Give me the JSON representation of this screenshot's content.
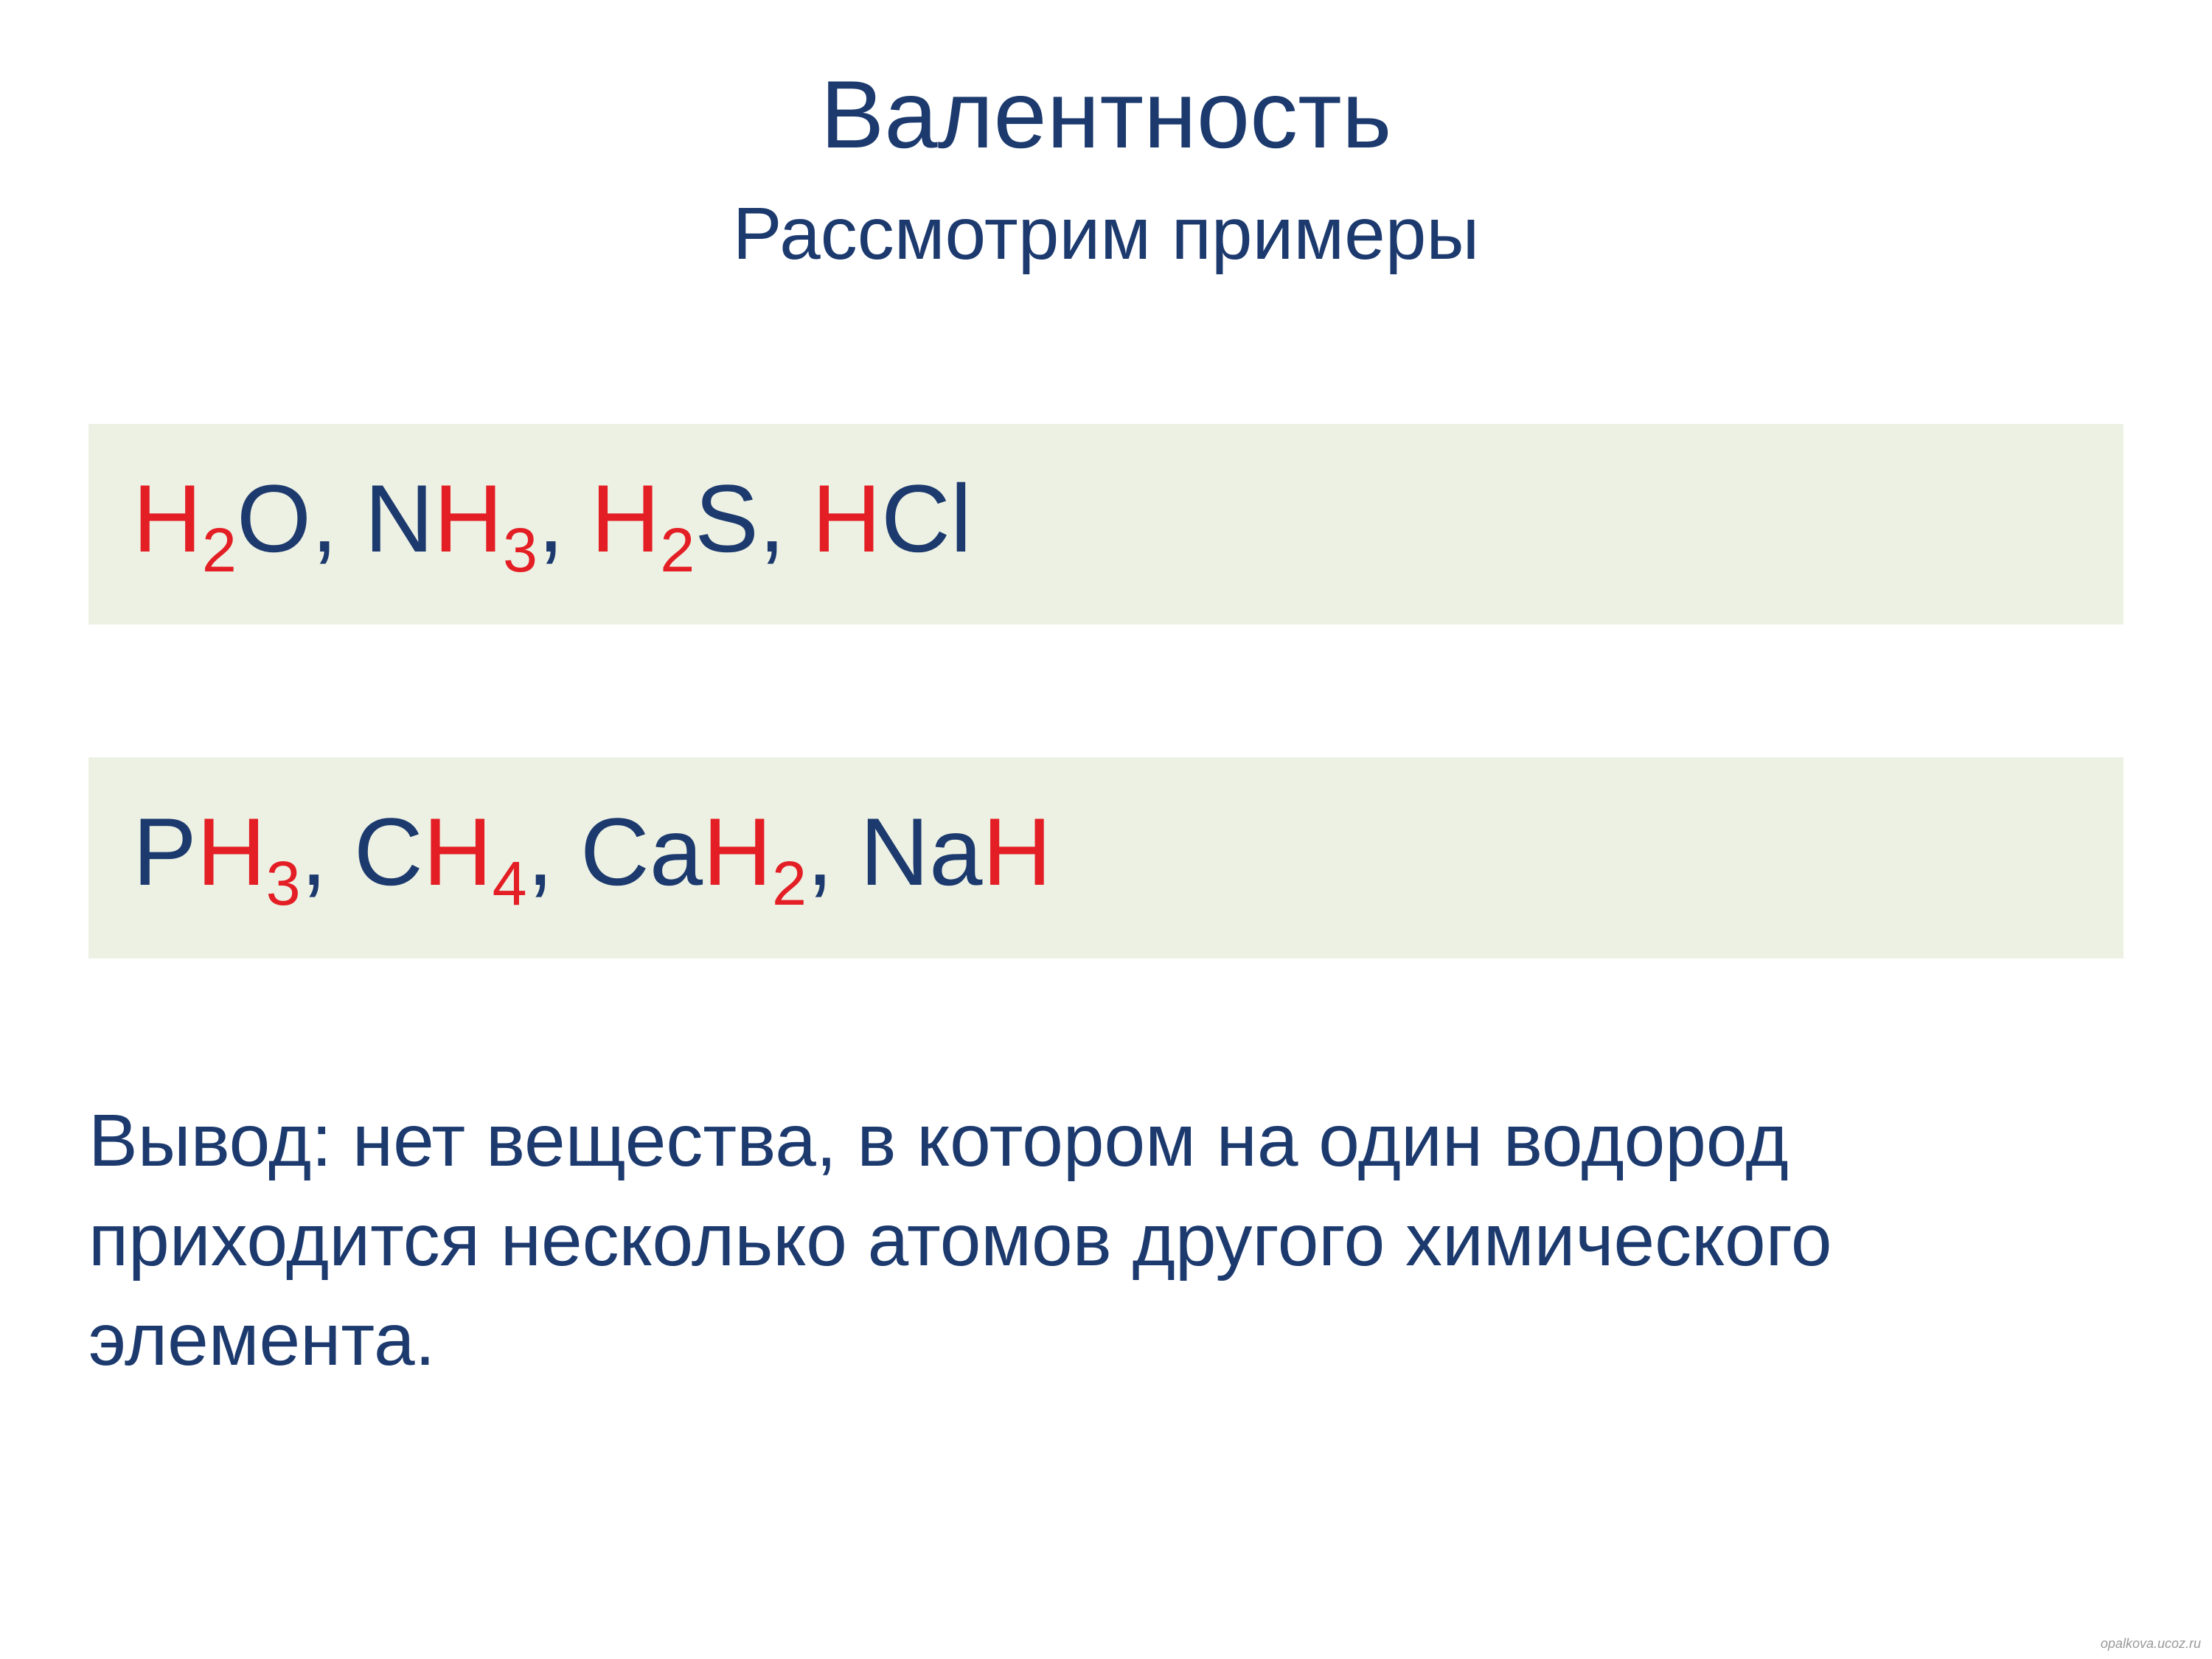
{
  "title": "Валентность",
  "subtitle": "Рассмотрим примеры",
  "colors": {
    "dark_blue": "#1c3a6e",
    "red": "#e31e24",
    "box_bg": "#edf1e4",
    "text": "#1c3a6e"
  },
  "typography": {
    "title_fontsize": 130,
    "subtitle_fontsize": 100,
    "formula_fontsize": 130,
    "conclusion_fontsize": 100,
    "subscript_ratio": 0.65
  },
  "row1": {
    "formulas": [
      {
        "parts": [
          {
            "t": "H",
            "c": "red"
          },
          {
            "t": "2",
            "c": "red",
            "sub": true
          },
          {
            "t": "O",
            "c": "dark_blue"
          }
        ]
      },
      {
        "parts": [
          {
            "t": "N",
            "c": "dark_blue"
          },
          {
            "t": "H",
            "c": "red"
          },
          {
            "t": "3",
            "c": "red",
            "sub": true
          }
        ]
      },
      {
        "parts": [
          {
            "t": "H",
            "c": "red"
          },
          {
            "t": "2",
            "c": "red",
            "sub": true
          },
          {
            "t": "S",
            "c": "dark_blue"
          }
        ]
      },
      {
        "parts": [
          {
            "t": "H",
            "c": "red"
          },
          {
            "t": "Cl",
            "c": "dark_blue"
          }
        ]
      }
    ],
    "separator": ", "
  },
  "row2": {
    "formulas": [
      {
        "parts": [
          {
            "t": "P",
            "c": "dark_blue"
          },
          {
            "t": "H",
            "c": "red"
          },
          {
            "t": "3",
            "c": "red",
            "sub": true
          }
        ]
      },
      {
        "parts": [
          {
            "t": "C",
            "c": "dark_blue"
          },
          {
            "t": "H",
            "c": "red"
          },
          {
            "t": "4",
            "c": "red",
            "sub": true
          }
        ]
      },
      {
        "parts": [
          {
            "t": "Ca",
            "c": "dark_blue"
          },
          {
            "t": "H",
            "c": "red"
          },
          {
            "t": "2",
            "c": "red",
            "sub": true
          }
        ]
      },
      {
        "parts": [
          {
            "t": "Na",
            "c": "dark_blue"
          },
          {
            "t": "H",
            "c": "red"
          }
        ]
      }
    ],
    "separator": ", "
  },
  "conclusion": "Вывод: нет вещества, в котором на один водород приходится несколько атомов другого химического элемента.",
  "watermark": "opalkova.ucoz.ru"
}
